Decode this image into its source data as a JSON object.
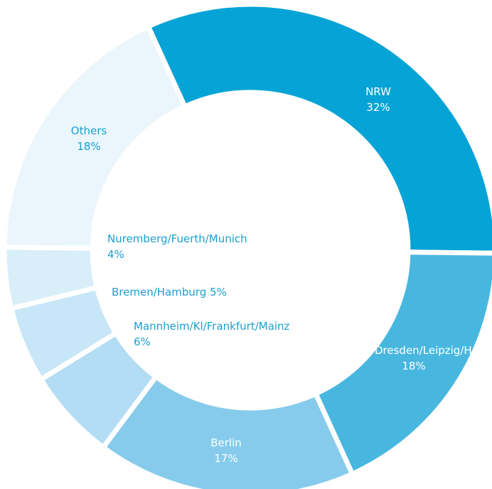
{
  "chart_data": {
    "type": "donut",
    "categories": [
      "NRW",
      "Dresden/Leipzig/Halle",
      "Berlin",
      "Mannheim/Kl/Frankfurt/Mainz",
      "Bremen/Hamburg",
      "Nuremberg/Fuerth/Munich",
      "Others"
    ],
    "values": [
      32,
      18,
      17,
      6,
      5,
      4,
      18
    ],
    "value_labels": [
      "32%",
      "18%",
      "17%",
      "6%",
      "5%",
      "4%",
      "18%"
    ],
    "colors": [
      "#06a3d6",
      "#48b7df",
      "#86cbeb",
      "#b3ddf4",
      "#c7e6f7",
      "#d8eef9",
      "#ebf6fc"
    ]
  }
}
